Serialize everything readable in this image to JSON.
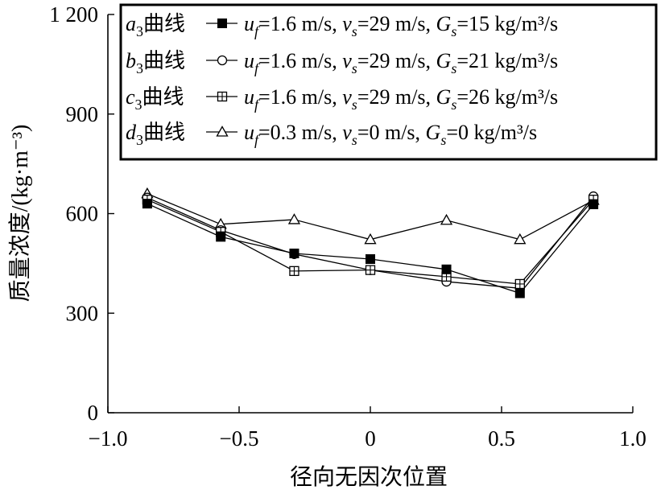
{
  "chart_data": {
    "type": "line",
    "xlabel": "径向无因次位置",
    "ylabel": "质量浓度/(kg·m⁻³)",
    "xlim": [
      -1.0,
      1.0
    ],
    "ylim": [
      0,
      1200
    ],
    "x_ticks": [
      "−1.0",
      "−0.5",
      "0",
      "0.5",
      "1.0"
    ],
    "y_ticks": [
      "0",
      "300",
      "600",
      "900",
      "1 200"
    ],
    "grid": false,
    "legend_position": "top-right",
    "x": [
      -0.85,
      -0.57,
      -0.29,
      0,
      0.29,
      0.57,
      0.85
    ],
    "series": [
      {
        "name": "a3曲线",
        "marker": "filled-square",
        "params": {
          "uf": "1.6 m/s",
          "vs": "29 m/s",
          "Gs": "15 kg/m³/s"
        },
        "values": [
          630,
          530,
          480,
          463,
          432,
          360,
          628
        ]
      },
      {
        "name": "b3曲线",
        "marker": "open-circle",
        "params": {
          "uf": "1.6 m/s",
          "vs": "29 m/s",
          "Gs": "21 kg/m³/s"
        },
        "values": [
          648,
          550,
          478,
          430,
          395,
          375,
          652
        ]
      },
      {
        "name": "c3曲线",
        "marker": "crossed-square",
        "params": {
          "uf": "1.6 m/s",
          "vs": "29 m/s",
          "Gs": "26 kg/m³/s"
        },
        "values": [
          642,
          545,
          427,
          430,
          410,
          388,
          642
        ]
      },
      {
        "name": "d3曲线",
        "marker": "open-triangle",
        "params": {
          "uf": "0.3 m/s",
          "vs": "0 m/s",
          "Gs": "0 kg/m³/s"
        },
        "values": [
          660,
          568,
          582,
          522,
          580,
          522,
          640
        ]
      }
    ]
  }
}
